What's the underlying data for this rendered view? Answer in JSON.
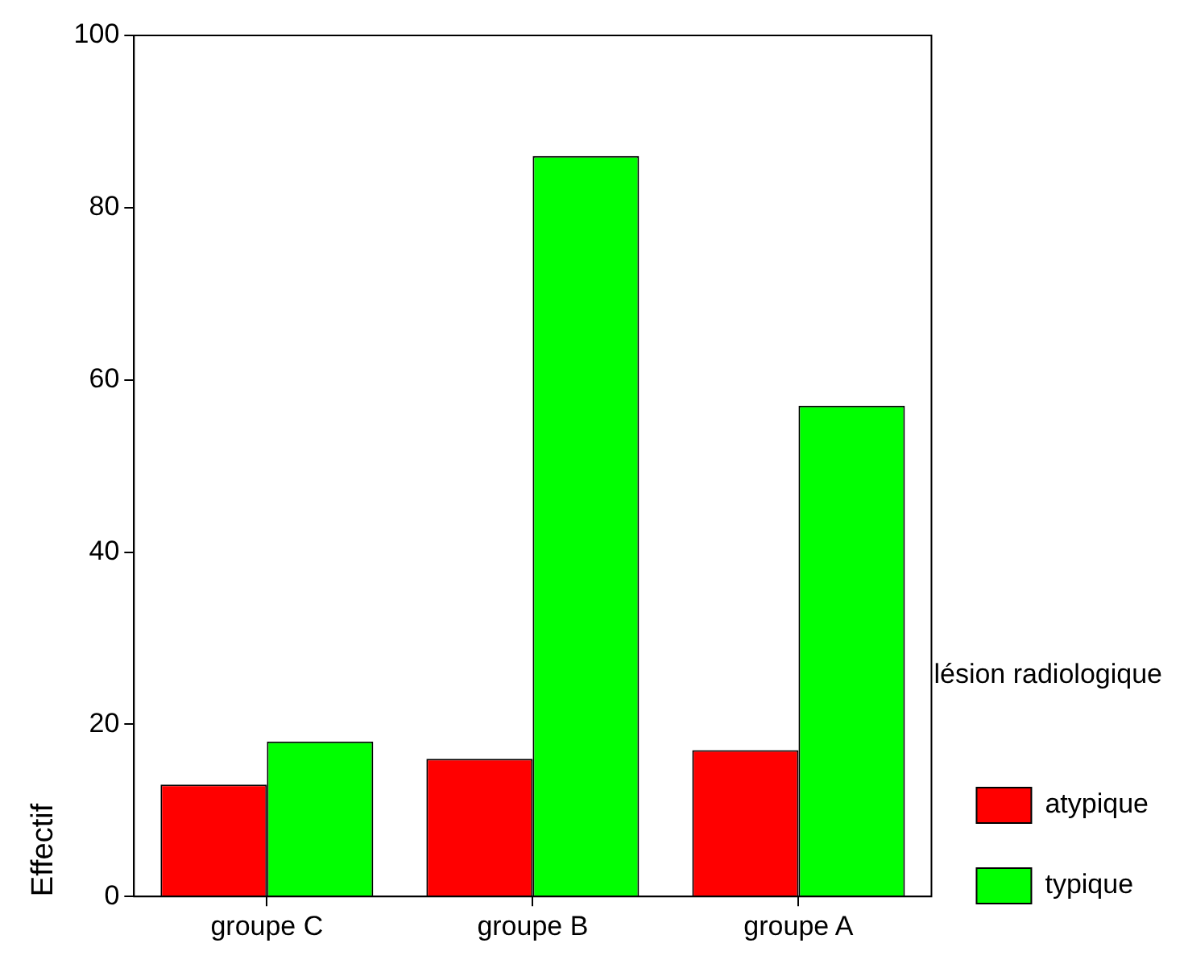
{
  "chart_data": {
    "type": "bar",
    "ylabel": "Effectif",
    "legend_title": "lésion radiologique",
    "categories": [
      "groupe C",
      "groupe B",
      "groupe A"
    ],
    "series": [
      {
        "name": "atypique",
        "color": "#ff0000",
        "values": [
          13,
          16,
          17
        ]
      },
      {
        "name": "typique",
        "color": "#00ff00",
        "values": [
          18,
          86,
          57
        ]
      }
    ],
    "ylim": [
      0,
      100
    ],
    "yticks": [
      0,
      20,
      40,
      60,
      80,
      100
    ],
    "grid": false,
    "legend": "right"
  }
}
